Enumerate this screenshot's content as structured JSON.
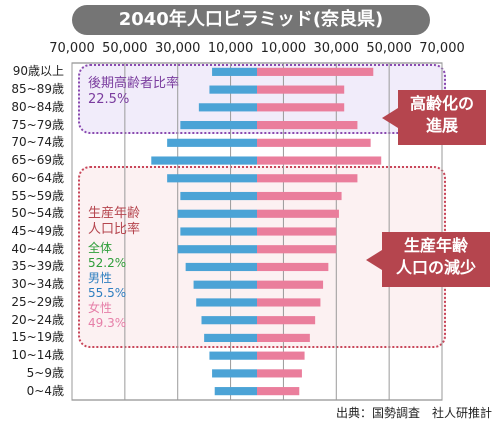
{
  "chart_data": {
    "type": "bar",
    "title": "2040年人口ピラミッド(奈良県)",
    "x_tick_labels": [
      "70,000",
      "50,000",
      "30,000",
      "10,000",
      "10,000",
      "30,000",
      "50,000",
      "70,000"
    ],
    "x_tick_values": [
      -70000,
      -50000,
      -30000,
      -10000,
      10000,
      30000,
      50000,
      70000
    ],
    "xlim": [
      -70000,
      70000
    ],
    "categories": [
      "90歳以上",
      "85~89歳",
      "80~84歳",
      "75~79歳",
      "70~74歳",
      "65~69歳",
      "60~64歳",
      "55~59歳",
      "50~54歳",
      "45~49歳",
      "40~44歳",
      "35~39歳",
      "30~34歳",
      "25~29歳",
      "20~24歳",
      "15~19歳",
      "10~14歳",
      "5~9歳",
      "0~4歳"
    ],
    "series": [
      {
        "name": "男性",
        "color": "#4ba3d6",
        "values": [
          17000,
          18000,
          22000,
          29000,
          34000,
          40000,
          34000,
          29000,
          30000,
          29000,
          30000,
          27000,
          24000,
          23000,
          21000,
          20000,
          18000,
          17000,
          16000
        ]
      },
      {
        "name": "女性",
        "color": "#ea7e9c",
        "values": [
          44000,
          33000,
          33000,
          38000,
          43000,
          47000,
          38000,
          32000,
          31000,
          30000,
          30000,
          27000,
          25000,
          24000,
          22000,
          20000,
          18000,
          17000,
          16000
        ]
      }
    ],
    "grid": true
  },
  "annotations": {
    "elderly_label": "後期高齢者比率",
    "elderly_value": "22.5%",
    "elderly_callout_line1": "高齢化の",
    "elderly_callout_line2": "進展",
    "working_label_line1": "生産年齢",
    "working_label_line2": "人口比率",
    "total_label": "全体",
    "total_value": "52.2%",
    "male_label": "男性",
    "male_value": "55.5%",
    "female_label": "女性",
    "female_value": "49.3%",
    "working_callout_line1": "生産年齢",
    "working_callout_line2": "人口の減少"
  },
  "source": "出典：国勢調査　社人研推計",
  "colors": {
    "elderly": "#7a3c9e",
    "working": "#b5454e",
    "total": "#2e9e3a",
    "male": "#2f7fc0",
    "female": "#e67fa8"
  }
}
